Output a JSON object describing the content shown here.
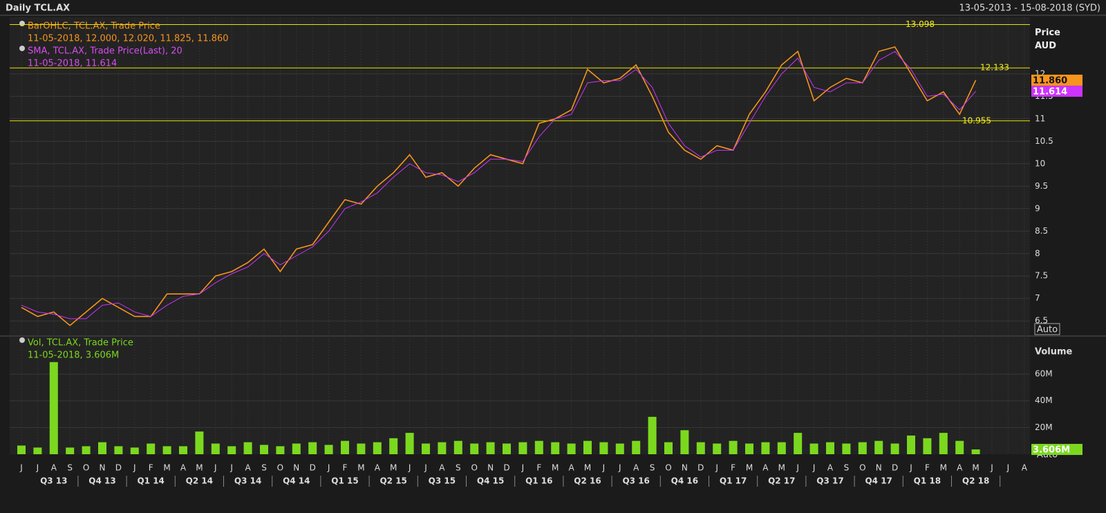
{
  "chart_data": [
    {
      "type": "line",
      "title": "Daily TCL.AX",
      "subtitle": "13-05-2013 - 15-08-2018 (SYD)",
      "ylabel": "Price AUD",
      "auto_label": "Auto",
      "categories": [
        "J",
        "J",
        "A",
        "S",
        "O",
        "N",
        "D",
        "J",
        "F",
        "M",
        "A",
        "M",
        "J",
        "J",
        "A",
        "S",
        "O",
        "N",
        "D",
        "J",
        "F",
        "M",
        "A",
        "M",
        "J",
        "J",
        "A",
        "S",
        "O",
        "N",
        "D",
        "J",
        "F",
        "M",
        "A",
        "M",
        "J",
        "J",
        "A",
        "S",
        "O",
        "N",
        "D",
        "J",
        "F",
        "M",
        "A",
        "M",
        "J",
        "J",
        "A",
        "S",
        "O",
        "N",
        "D",
        "J",
        "F",
        "M",
        "A",
        "M",
        "J",
        "J",
        "A"
      ],
      "quarters": [
        "Q3 13",
        "Q4 13",
        "Q1 14",
        "Q2 14",
        "Q3 14",
        "Q4 14",
        "Q1 15",
        "Q2 15",
        "Q3 15",
        "Q4 15",
        "Q1 16",
        "Q2 16",
        "Q3 16",
        "Q4 16",
        "Q1 17",
        "Q2 17",
        "Q3 17",
        "Q4 17",
        "Q1 18",
        "Q2 18"
      ],
      "ylim": [
        6.18,
        13.26
      ],
      "yticks": [
        6.5,
        7,
        7.5,
        8,
        8.5,
        9,
        9.5,
        10,
        10.5,
        11,
        11.5,
        12
      ],
      "grid": true,
      "levels": [
        13.098,
        12.133,
        10.955
      ],
      "series": [
        {
          "name": "BarOHLC, TCL.AX, Trade Price",
          "readout": "11-05-2018, 12.000, 12.020, 11.825, 11.860",
          "color": "#f7941d",
          "last_value": 11.86,
          "last_label": "11.860",
          "values": [
            6.8,
            6.6,
            6.7,
            6.4,
            6.7,
            7.0,
            6.8,
            6.6,
            6.6,
            7.1,
            7.1,
            7.1,
            7.5,
            7.6,
            7.8,
            8.1,
            7.6,
            8.1,
            8.2,
            8.7,
            9.2,
            9.1,
            9.5,
            9.8,
            10.2,
            9.7,
            9.8,
            9.5,
            9.9,
            10.2,
            10.1,
            10.0,
            10.9,
            11.0,
            11.2,
            12.1,
            11.8,
            11.9,
            12.2,
            11.5,
            10.7,
            10.3,
            10.1,
            10.4,
            10.3,
            11.1,
            11.6,
            12.2,
            12.5,
            11.4,
            11.7,
            11.9,
            11.8,
            12.5,
            12.6,
            12.0,
            11.4,
            11.6,
            11.1,
            11.86,
            null,
            null,
            null
          ]
        },
        {
          "name": "SMA, TCL.AX, Trade Price(Last),  20",
          "readout": "11-05-2018, 11.614",
          "color": "#cc33ff",
          "last_value": 11.614,
          "last_label": "11.614",
          "values": [
            6.85,
            6.7,
            6.65,
            6.55,
            6.55,
            6.85,
            6.9,
            6.7,
            6.6,
            6.85,
            7.05,
            7.1,
            7.35,
            7.55,
            7.7,
            8.0,
            7.75,
            7.95,
            8.15,
            8.5,
            9.0,
            9.15,
            9.35,
            9.7,
            10.0,
            9.8,
            9.75,
            9.6,
            9.8,
            10.1,
            10.1,
            10.05,
            10.6,
            11.0,
            11.1,
            11.8,
            11.85,
            11.85,
            12.1,
            11.7,
            10.9,
            10.4,
            10.15,
            10.3,
            10.3,
            10.9,
            11.5,
            12.0,
            12.35,
            11.7,
            11.6,
            11.8,
            11.8,
            12.3,
            12.5,
            12.1,
            11.5,
            11.55,
            11.2,
            11.614,
            null,
            null,
            null
          ]
        }
      ]
    },
    {
      "type": "bar",
      "ylabel": "Volume",
      "auto_label": "Auto",
      "ylim": [
        0,
        88000000
      ],
      "yticks": [
        {
          "value": 20000000,
          "label": "20M"
        },
        {
          "value": 40000000,
          "label": "40M"
        },
        {
          "value": 60000000,
          "label": "60M"
        }
      ],
      "grid": true,
      "series": [
        {
          "name": "Vol, TCL.AX, Trade Price",
          "readout": "11-05-2018, 3.606M",
          "color": "#7bd81f",
          "last_value": 3606000,
          "last_label": "3.606M",
          "values": [
            6500000,
            5000000,
            69000000,
            5000000,
            6000000,
            9000000,
            6000000,
            5000000,
            8000000,
            6000000,
            6000000,
            17000000,
            8000000,
            6000000,
            9000000,
            7000000,
            6000000,
            8000000,
            9000000,
            7000000,
            10000000,
            8000000,
            9000000,
            12000000,
            16000000,
            8000000,
            9000000,
            10000000,
            8000000,
            9000000,
            8000000,
            9000000,
            10000000,
            9000000,
            8000000,
            10000000,
            9000000,
            8000000,
            10000000,
            28000000,
            9000000,
            18000000,
            9000000,
            8000000,
            10000000,
            8000000,
            9000000,
            9000000,
            16000000,
            8000000,
            9000000,
            8000000,
            9000000,
            10000000,
            8000000,
            14000000,
            12000000,
            16000000,
            10000000,
            3606000,
            null,
            null,
            null
          ]
        }
      ]
    }
  ]
}
